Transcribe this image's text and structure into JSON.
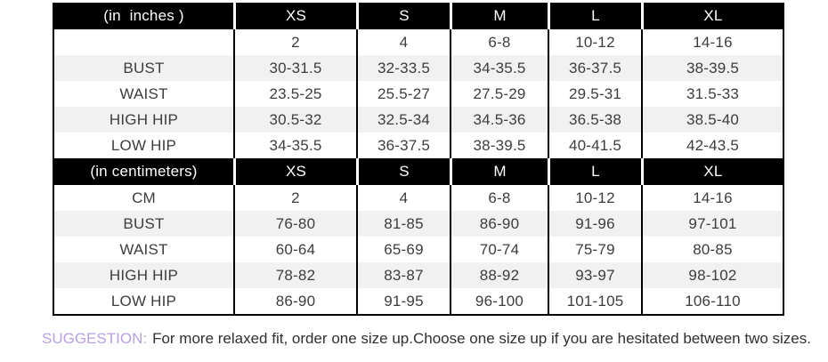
{
  "colors": {
    "header_bg": "#000000",
    "header_text": "#ffffff",
    "alt_row_bg": "#f1f1f1",
    "cell_text": "#3d3d3d",
    "border": "#000000",
    "suggestion_label": "#b7a0e2"
  },
  "size_chart": {
    "sections": [
      {
        "title": "(in  inches )",
        "columns": [
          "XS",
          "S",
          "M",
          "L",
          "XL"
        ],
        "rows": [
          {
            "label": "",
            "values": [
              "2",
              "4",
              "6-8",
              "10-12",
              "14-16"
            ]
          },
          {
            "label": "BUST",
            "values": [
              "30-31.5",
              "32-33.5",
              "34-35.5",
              "36-37.5",
              "38-39.5"
            ]
          },
          {
            "label": "WAIST",
            "values": [
              "23.5-25",
              "25.5-27",
              "27.5-29",
              "29.5-31",
              "31.5-33"
            ]
          },
          {
            "label": "HIGH HIP",
            "values": [
              "30.5-32",
              "32.5-34",
              "34.5-36",
              "36.5-38",
              "38.5-40"
            ]
          },
          {
            "label": "LOW HIP",
            "values": [
              "34-35.5",
              "36-37.5",
              "38-39.5",
              "40-41.5",
              "42-43.5"
            ]
          }
        ]
      },
      {
        "title": "(in centimeters)",
        "columns": [
          "XS",
          "S",
          "M",
          "L",
          "XL"
        ],
        "rows": [
          {
            "label": "CM",
            "values": [
              "2",
              "4",
              "6-8",
              "10-12",
              "14-16"
            ]
          },
          {
            "label": "BUST",
            "values": [
              "76-80",
              "81-85",
              "86-90",
              "91-96",
              "97-101"
            ]
          },
          {
            "label": "WAIST",
            "values": [
              "60-64",
              "65-69",
              "70-74",
              "75-79",
              "80-85"
            ]
          },
          {
            "label": "HIGH HIP",
            "values": [
              "78-82",
              "83-87",
              "88-92",
              "93-97",
              "98-102"
            ]
          },
          {
            "label": "LOW HIP",
            "values": [
              "86-90",
              "91-95",
              "96-100",
              "101-105",
              "106-110"
            ]
          }
        ]
      }
    ]
  },
  "suggestion": {
    "label": "SUGGESTION:",
    "text": "For more relaxed fit, order one size up.Choose one size up if you are hesitated between two sizes."
  }
}
